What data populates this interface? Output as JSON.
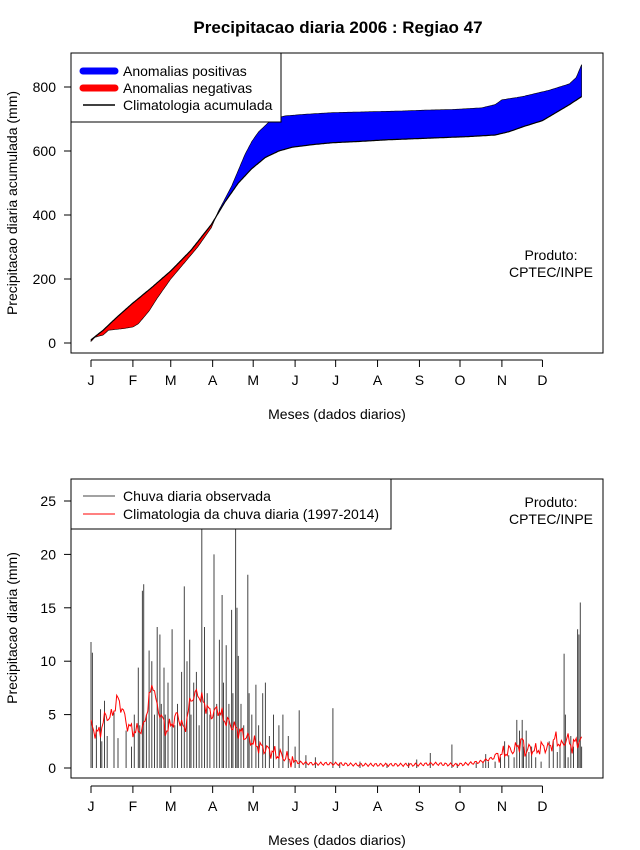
{
  "title": "Precipitacao diaria 2006 : Regiao 47",
  "product_label_line1": "Produto:",
  "product_label_line2": "CPTEC/INPE",
  "colors": {
    "positive": "#0000ff",
    "negative": "#ff0000",
    "climatology": "#000000",
    "observed_bars": "#444444",
    "daily_climatology": "#ff0000"
  },
  "chart_data": [
    {
      "type": "area",
      "id": "cumulative",
      "ylabel": "Precipitacao diaria acumulada (mm)",
      "xlabel": "Meses (dados diarios)",
      "xlim": [
        1,
        365
      ],
      "ylim": [
        0,
        880
      ],
      "yticks": [
        0,
        200,
        400,
        600,
        800
      ],
      "month_labels": [
        "J",
        "F",
        "M",
        "A",
        "M",
        "J",
        "J",
        "A",
        "S",
        "O",
        "N",
        "D"
      ],
      "month_start_days": [
        1,
        32,
        60,
        91,
        121,
        152,
        182,
        213,
        244,
        274,
        305,
        335
      ],
      "legend": [
        "Anomalias positivas",
        "Anomalias negativas",
        "Climatologia acumulada"
      ],
      "observed_cumulative_knots": [
        [
          1,
          5
        ],
        [
          4,
          18
        ],
        [
          10,
          25
        ],
        [
          14,
          40
        ],
        [
          25,
          45
        ],
        [
          32,
          50
        ],
        [
          36,
          60
        ],
        [
          44,
          100
        ],
        [
          50,
          140
        ],
        [
          55,
          170
        ],
        [
          60,
          200
        ],
        [
          70,
          250
        ],
        [
          80,
          300
        ],
        [
          90,
          360
        ],
        [
          95,
          410
        ],
        [
          100,
          450
        ],
        [
          105,
          490
        ],
        [
          110,
          540
        ],
        [
          115,
          590
        ],
        [
          120,
          630
        ],
        [
          125,
          660
        ],
        [
          130,
          680
        ],
        [
          135,
          700
        ],
        [
          145,
          710
        ],
        [
          160,
          715
        ],
        [
          180,
          720
        ],
        [
          200,
          722
        ],
        [
          230,
          725
        ],
        [
          250,
          728
        ],
        [
          270,
          730
        ],
        [
          290,
          735
        ],
        [
          300,
          745
        ],
        [
          305,
          760
        ],
        [
          320,
          770
        ],
        [
          340,
          790
        ],
        [
          355,
          810
        ],
        [
          360,
          830
        ],
        [
          364,
          870
        ]
      ],
      "climatology_cumulative_knots": [
        [
          1,
          10
        ],
        [
          10,
          40
        ],
        [
          20,
          80
        ],
        [
          32,
          125
        ],
        [
          45,
          170
        ],
        [
          60,
          225
        ],
        [
          75,
          290
        ],
        [
          90,
          370
        ],
        [
          100,
          440
        ],
        [
          110,
          500
        ],
        [
          120,
          545
        ],
        [
          130,
          580
        ],
        [
          140,
          600
        ],
        [
          150,
          612
        ],
        [
          165,
          620
        ],
        [
          180,
          626
        ],
        [
          200,
          630
        ],
        [
          220,
          635
        ],
        [
          250,
          640
        ],
        [
          280,
          645
        ],
        [
          300,
          650
        ],
        [
          310,
          660
        ],
        [
          320,
          675
        ],
        [
          335,
          695
        ],
        [
          345,
          720
        ],
        [
          355,
          745
        ],
        [
          364,
          770
        ]
      ]
    },
    {
      "type": "bar",
      "id": "daily",
      "ylabel": "Precipitacao diaria (mm)",
      "xlabel": "Meses (dados diarios)",
      "xlim": [
        1,
        365
      ],
      "ylim": [
        0,
        26
      ],
      "yticks": [
        0,
        5,
        10,
        15,
        20,
        25
      ],
      "month_labels": [
        "J",
        "F",
        "M",
        "A",
        "M",
        "J",
        "J",
        "A",
        "S",
        "O",
        "N",
        "D"
      ],
      "month_start_days": [
        1,
        32,
        60,
        91,
        121,
        152,
        182,
        213,
        244,
        274,
        305,
        335
      ],
      "legend": [
        "Chuva diaria observada",
        "Climatologia da chuva diaria (1997-2014)"
      ],
      "observed_daily_peaks": [
        [
          1,
          11.8
        ],
        [
          2,
          10.8
        ],
        [
          5,
          4.0
        ],
        [
          8,
          5.5
        ],
        [
          9,
          2.5
        ],
        [
          11,
          6.3
        ],
        [
          13,
          3.0
        ],
        [
          18,
          5.2
        ],
        [
          21,
          2.8
        ],
        [
          27,
          3.5
        ],
        [
          31,
          2.0
        ],
        [
          33,
          5.0
        ],
        [
          36,
          9.4
        ],
        [
          37,
          4.0
        ],
        [
          39,
          16.6
        ],
        [
          40,
          17.2
        ],
        [
          42,
          5.0
        ],
        [
          44,
          11.0
        ],
        [
          46,
          10.0
        ],
        [
          48,
          5.0
        ],
        [
          50,
          13.2
        ],
        [
          52,
          12.5
        ],
        [
          53,
          6.0
        ],
        [
          55,
          9.4
        ],
        [
          56,
          5.0
        ],
        [
          58,
          8.0
        ],
        [
          61,
          13.0
        ],
        [
          63,
          4.0
        ],
        [
          65,
          6.0
        ],
        [
          68,
          9.0
        ],
        [
          70,
          17.0
        ],
        [
          72,
          10.0
        ],
        [
          74,
          12.0
        ],
        [
          75,
          5.0
        ],
        [
          77,
          8.0
        ],
        [
          79,
          9.0
        ],
        [
          81,
          4.0
        ],
        [
          83,
          24.0
        ],
        [
          85,
          13.2
        ],
        [
          87,
          7.0
        ],
        [
          89,
          5.0
        ],
        [
          92,
          20.0
        ],
        [
          94,
          6.0
        ],
        [
          96,
          12.0
        ],
        [
          98,
          16.2
        ],
        [
          99,
          8.0
        ],
        [
          101,
          11.5
        ],
        [
          103,
          6.0
        ],
        [
          105,
          14.8
        ],
        [
          106,
          7.0
        ],
        [
          108,
          24.0
        ],
        [
          109,
          15.0
        ],
        [
          110,
          10.5
        ],
        [
          112,
          6.0
        ],
        [
          114,
          4.0
        ],
        [
          117,
          18.1
        ],
        [
          118,
          7.0
        ],
        [
          120,
          5.0
        ],
        [
          123,
          7.8
        ],
        [
          125,
          4.0
        ],
        [
          128,
          7.0
        ],
        [
          130,
          8.0
        ],
        [
          133,
          3.0
        ],
        [
          136,
          5.0
        ],
        [
          140,
          4.0
        ],
        [
          143,
          5.0
        ],
        [
          147,
          3.0
        ],
        [
          152,
          2.0
        ],
        [
          155,
          5.4
        ],
        [
          160,
          1.2
        ],
        [
          167,
          1.0
        ],
        [
          180,
          5.6
        ],
        [
          185,
          0.5
        ],
        [
          200,
          0.6
        ],
        [
          220,
          0.4
        ],
        [
          236,
          0.5
        ],
        [
          242,
          0.8
        ],
        [
          252,
          1.4
        ],
        [
          268,
          2.2
        ],
        [
          272,
          0.4
        ],
        [
          286,
          0.5
        ],
        [
          291,
          0.6
        ],
        [
          293,
          1.3
        ],
        [
          295,
          0.6
        ],
        [
          300,
          0.6
        ],
        [
          304,
          1.0
        ],
        [
          307,
          2.5
        ],
        [
          310,
          1.2
        ],
        [
          314,
          1.0
        ],
        [
          316,
          4.5
        ],
        [
          318,
          3.5
        ],
        [
          320,
          4.5
        ],
        [
          321,
          2.0
        ],
        [
          323,
          3.5
        ],
        [
          325,
          1.5
        ],
        [
          327,
          2.0
        ],
        [
          330,
          1.0
        ],
        [
          334,
          0.6
        ],
        [
          340,
          2.5
        ],
        [
          343,
          2.5
        ],
        [
          346,
          1.5
        ],
        [
          348,
          2.0
        ],
        [
          351,
          10.7
        ],
        [
          352,
          5.0
        ],
        [
          354,
          1.0
        ],
        [
          356,
          3.0
        ],
        [
          358,
          2.0
        ],
        [
          361,
          13.0
        ],
        [
          362,
          12.5
        ],
        [
          363,
          15.5
        ],
        [
          364,
          2.0
        ]
      ],
      "climatology_daily_knots": [
        [
          1,
          4.0
        ],
        [
          5,
          3.2
        ],
        [
          8,
          3.5
        ],
        [
          12,
          5.0
        ],
        [
          15,
          4.6
        ],
        [
          18,
          5.5
        ],
        [
          21,
          6.5
        ],
        [
          24,
          5.5
        ],
        [
          28,
          4.0
        ],
        [
          32,
          3.5
        ],
        [
          36,
          3.5
        ],
        [
          40,
          3.8
        ],
        [
          44,
          6.5
        ],
        [
          47,
          8.0
        ],
        [
          50,
          5.5
        ],
        [
          53,
          5.0
        ],
        [
          56,
          3.5
        ],
        [
          60,
          4.0
        ],
        [
          65,
          5.0
        ],
        [
          70,
          3.5
        ],
        [
          75,
          6.5
        ],
        [
          80,
          7.0
        ],
        [
          85,
          6.0
        ],
        [
          90,
          5.0
        ],
        [
          95,
          5.5
        ],
        [
          100,
          4.5
        ],
        [
          105,
          4.0
        ],
        [
          110,
          3.5
        ],
        [
          115,
          3.0
        ],
        [
          120,
          2.5
        ],
        [
          125,
          2.0
        ],
        [
          130,
          1.8
        ],
        [
          135,
          1.5
        ],
        [
          140,
          1.2
        ],
        [
          145,
          1.0
        ],
        [
          150,
          0.7
        ],
        [
          155,
          0.5
        ],
        [
          165,
          0.4
        ],
        [
          180,
          0.4
        ],
        [
          200,
          0.3
        ],
        [
          220,
          0.3
        ],
        [
          240,
          0.3
        ],
        [
          255,
          0.4
        ],
        [
          270,
          0.3
        ],
        [
          280,
          0.4
        ],
        [
          290,
          0.6
        ],
        [
          300,
          1.0
        ],
        [
          305,
          1.3
        ],
        [
          310,
          1.6
        ],
        [
          315,
          1.8
        ],
        [
          318,
          2.2
        ],
        [
          320,
          2.6
        ],
        [
          322,
          1.6
        ],
        [
          326,
          1.8
        ],
        [
          330,
          1.6
        ],
        [
          335,
          2.0
        ],
        [
          340,
          1.9
        ],
        [
          345,
          2.8
        ],
        [
          349,
          2.0
        ],
        [
          353,
          2.8
        ],
        [
          357,
          2.0
        ],
        [
          360,
          2.5
        ],
        [
          364,
          2.5
        ]
      ]
    }
  ]
}
